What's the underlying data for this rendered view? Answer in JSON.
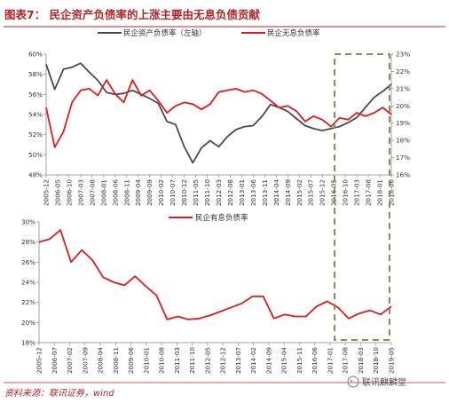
{
  "figure": {
    "title": "图表7：  民企资产负债率的上涨主要由无息负债贡献",
    "source": "资料来源：联讯证券，wind",
    "watermark": "联讯麒麟堂"
  },
  "colors": {
    "black_line": "#4a4a4a",
    "red_line": "#e01b1b",
    "title": "#b5242a",
    "dash_box": "#8c8a5c",
    "axis": "#888888"
  },
  "chart_data": [
    {
      "type": "line",
      "legend": "top",
      "x_ticks": [
        "2005-12",
        "2006-05",
        "2006-10",
        "2007-03",
        "2007-08",
        "2008-01",
        "2008-06",
        "2008-11",
        "2009-04",
        "2009-09",
        "2010-02",
        "2010-07",
        "2010-12",
        "2011-05",
        "2011-10",
        "2012-03",
        "2012-08",
        "2013-01",
        "2013-06",
        "2013-11",
        "2014-04",
        "2014-09",
        "2015-02",
        "2015-07",
        "2015-12",
        "2016-05",
        "2016-10",
        "2017-03",
        "2017-08",
        "2018-01",
        "2018-06"
      ],
      "y_left_ticks": [
        "60%",
        "58%",
        "56%",
        "54%",
        "52%",
        "50%",
        "48%"
      ],
      "y_right_ticks": [
        "23%",
        "22%",
        "21%",
        "20%",
        "19%",
        "18%",
        "17%",
        "16%"
      ],
      "ylim_left": [
        48,
        60
      ],
      "ylim_right": [
        16,
        23
      ],
      "series": [
        {
          "name": "民企资产负债率（左轴）",
          "axis": "left",
          "color": "#4a4a4a",
          "values": [
            59.0,
            56.5,
            58.5,
            58.7,
            59.1,
            58.2,
            57.4,
            56.2,
            56.0,
            56.1,
            56.4,
            56.0,
            55.6,
            55.1,
            53.3,
            53.0,
            50.8,
            49.2,
            50.7,
            51.4,
            50.8,
            51.8,
            52.5,
            52.8,
            52.9,
            53.8,
            55.0,
            54.7,
            54.3,
            53.6,
            52.9,
            52.6,
            52.4,
            52.6,
            52.8,
            53.2,
            53.7,
            54.7,
            55.7,
            56.3,
            57.0
          ]
        },
        {
          "name": "民企无息负债率",
          "axis": "right",
          "color": "#e01b1b",
          "values": [
            19.9,
            17.6,
            18.5,
            20.2,
            20.9,
            21.0,
            20.6,
            21.5,
            20.7,
            20.2,
            21.5,
            20.6,
            20.9,
            20.3,
            19.6,
            20.0,
            20.2,
            20.1,
            19.8,
            20.1,
            20.8,
            20.9,
            21.0,
            20.8,
            20.9,
            20.7,
            20.3,
            19.9,
            20.0,
            19.7,
            19.1,
            19.4,
            19.2,
            18.8,
            19.3,
            19.2,
            19.6,
            19.4,
            19.6,
            19.9,
            19.5
          ]
        }
      ]
    },
    {
      "type": "line",
      "legend": "top",
      "x_ticks": [
        "2005-12",
        "2006-07",
        "2007-02",
        "2007-09",
        "2008-04",
        "2008-11",
        "2009-06",
        "2010-01",
        "2010-08",
        "2011-03",
        "2011-10",
        "2012-05",
        "2012-12",
        "2013-07",
        "2014-02",
        "2014-09",
        "2015-04",
        "2015-11",
        "2016-06",
        "2017-01",
        "2017-08",
        "2018-03",
        "2018-10",
        "2019-05"
      ],
      "y_ticks": [
        "30%",
        "28%",
        "26%",
        "24%",
        "22%",
        "20%",
        "18%"
      ],
      "ylim": [
        18,
        30
      ],
      "series": [
        {
          "name": "民企有息负债率",
          "color": "#e01b1b",
          "values": [
            28.0,
            28.3,
            29.2,
            26.0,
            27.2,
            26.2,
            24.5,
            24.0,
            23.7,
            24.6,
            23.6,
            22.7,
            20.3,
            20.6,
            20.3,
            20.4,
            20.7,
            21.1,
            21.5,
            21.9,
            22.6,
            22.6,
            20.4,
            20.8,
            20.6,
            20.6,
            21.6,
            22.1,
            21.5,
            20.4,
            20.9,
            21.2,
            20.8,
            21.6
          ]
        }
      ]
    }
  ]
}
